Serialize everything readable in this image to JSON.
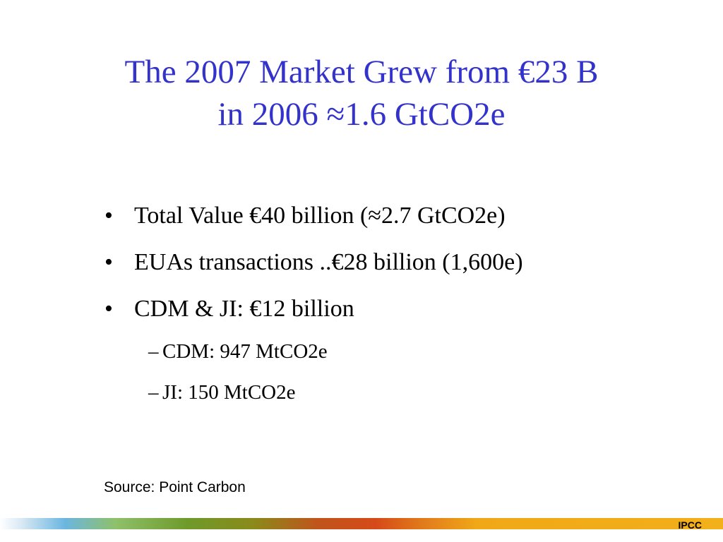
{
  "title": {
    "lines": [
      "The 2007 Market Grew from €23 B",
      "in 2006 ≈1.6 GtCO2e"
    ]
  },
  "bullets": [
    {
      "bullet": "•",
      "text": "Total Value €40 billion (≈2.7 GtCO2e)"
    },
    {
      "bullet": "•",
      "text": "EUAs transactions ..€28 billion (1,600e)"
    },
    {
      "bullet": "•",
      "text": "CDM & JI: €12 billion"
    }
  ],
  "sub_bullets": [
    {
      "bullet": "–",
      "text": "CDM: 947 MtCO2e"
    },
    {
      "bullet": "–",
      "text": "JI: 150 MtCO2e"
    }
  ],
  "source": "Source: Point Carbon",
  "footer": {
    "logo": "IPCC"
  }
}
